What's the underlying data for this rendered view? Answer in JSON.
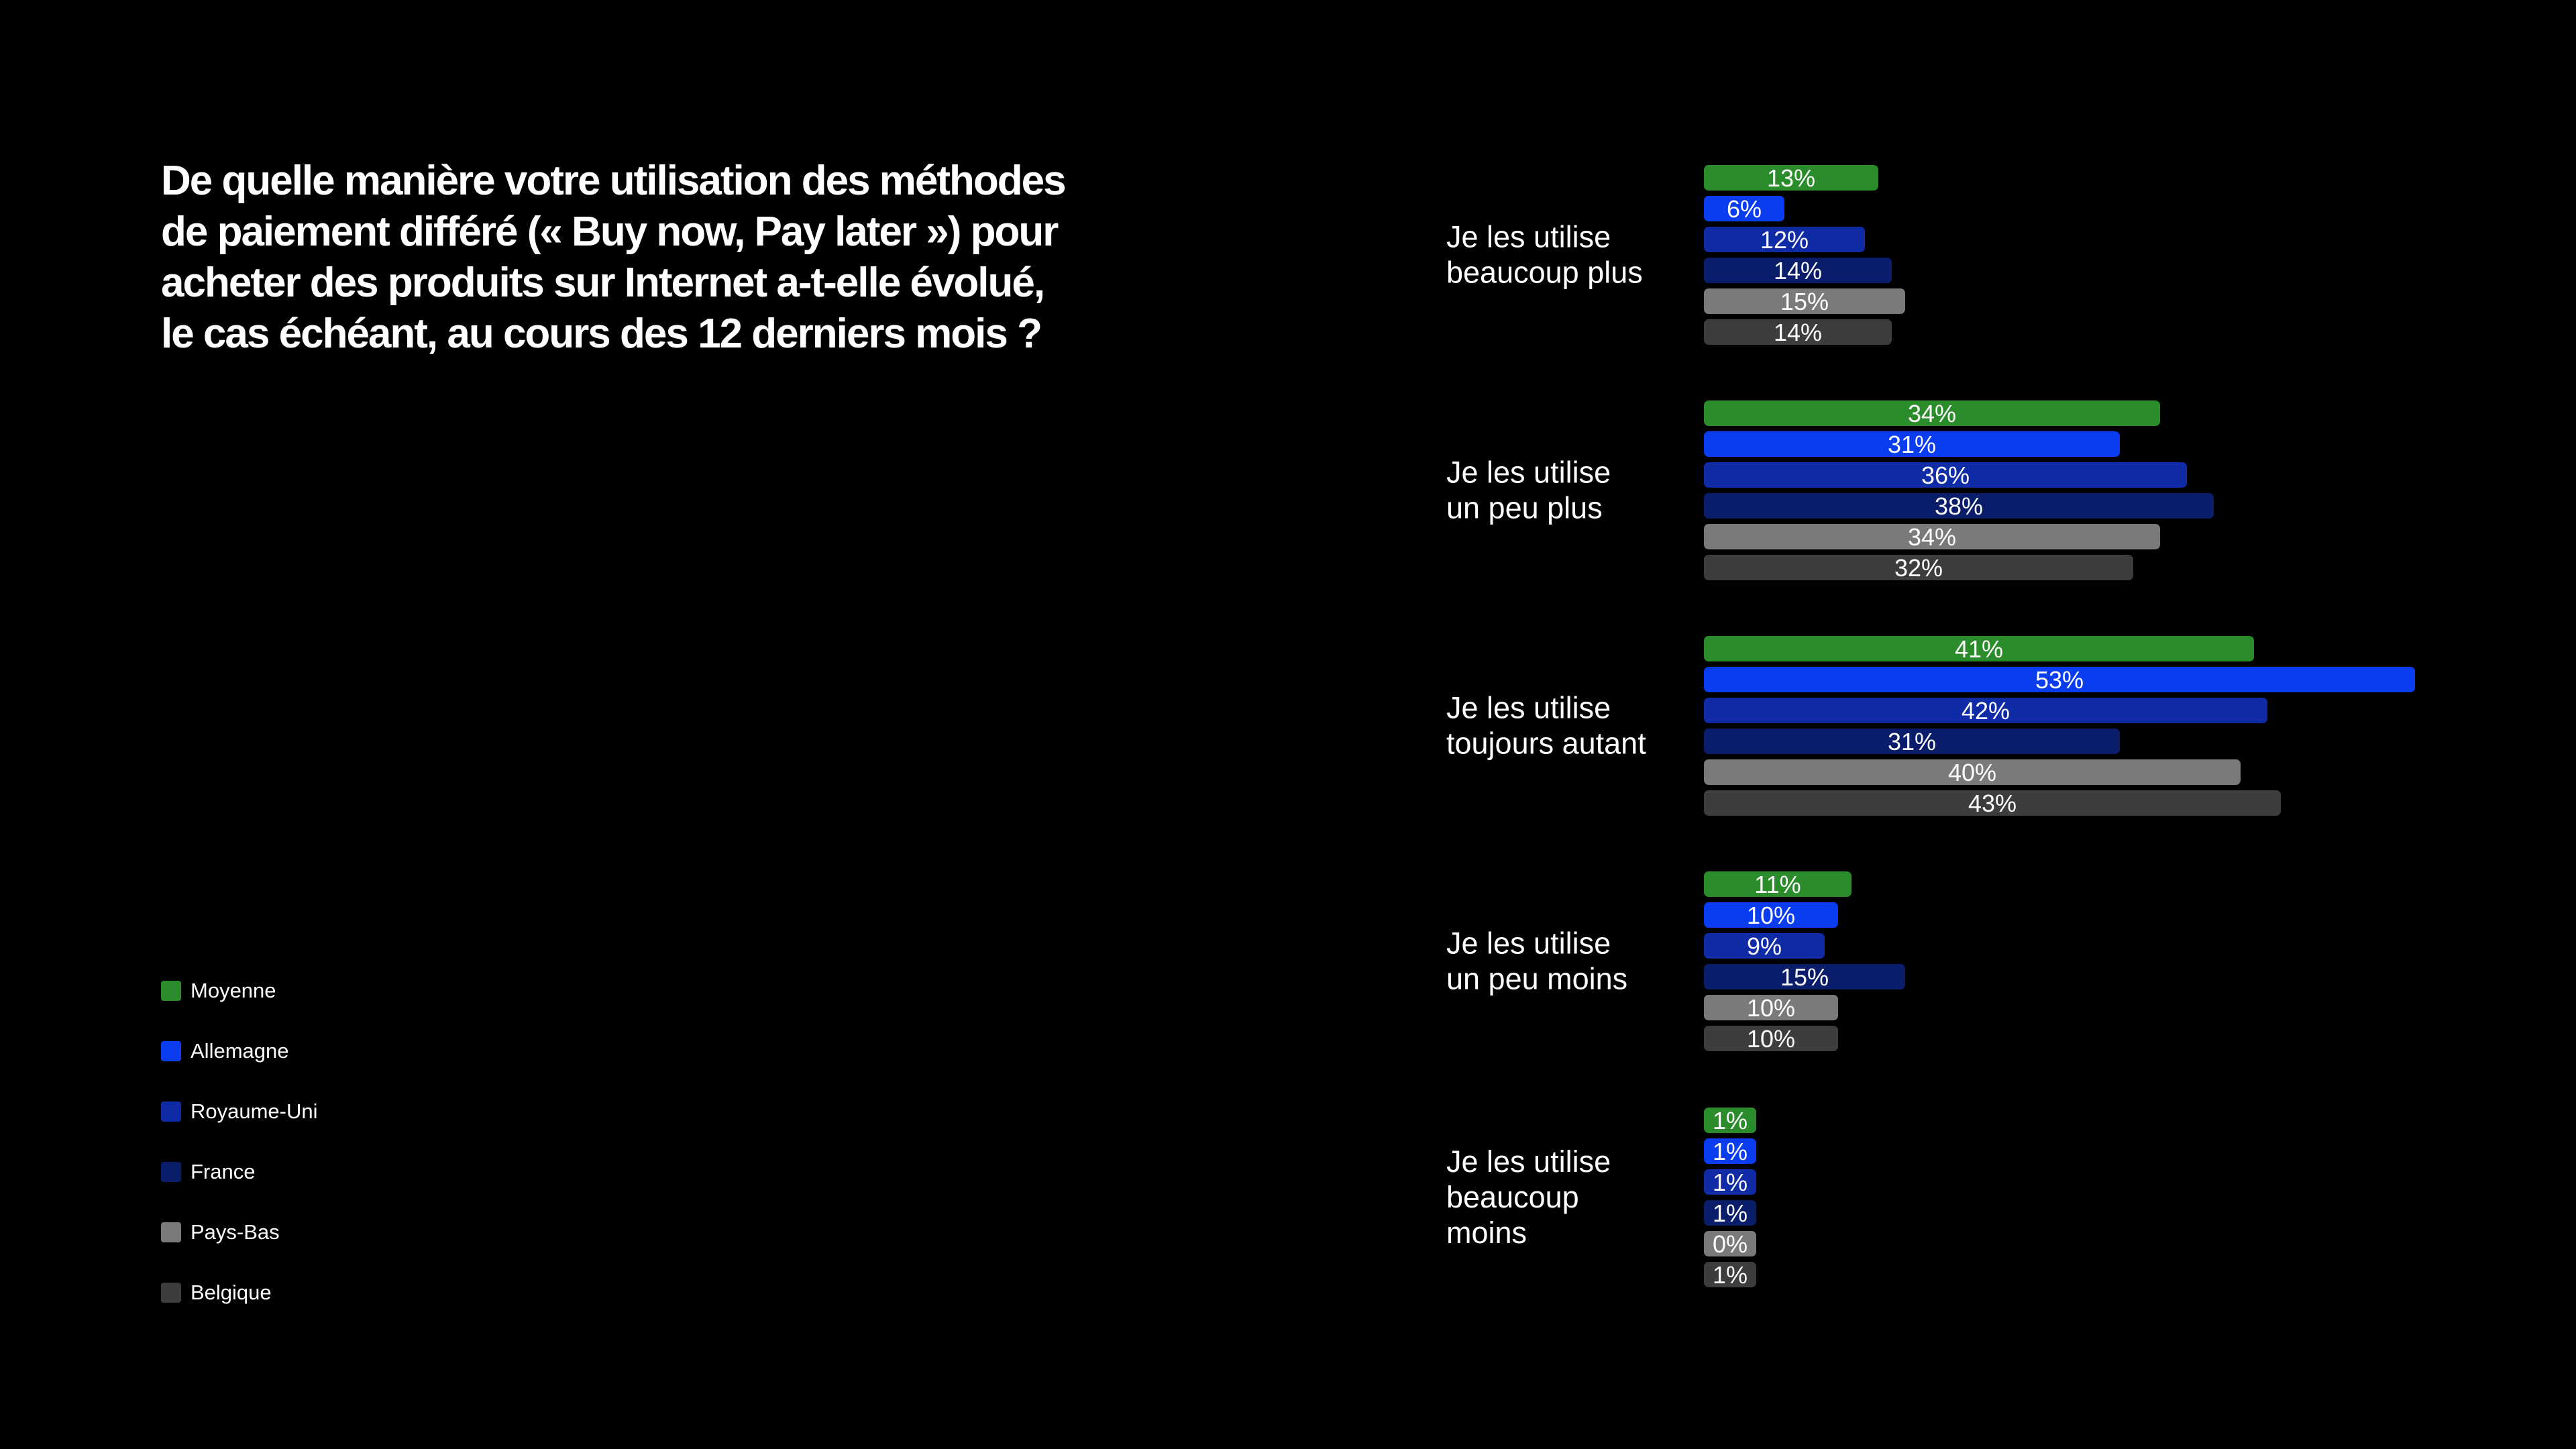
{
  "title": "De quelle manière votre utilisation des méthodes\nde paiement différé (« Buy now, Pay later ») pour\nacheter des produits sur Internet a-t-elle évolué,\nle cas échéant, au cours des 12 derniers mois ?",
  "legend": [
    {
      "label": "Moyenne",
      "color": "#2a8c2a"
    },
    {
      "label": "Allemagne",
      "color": "#0a3cf0"
    },
    {
      "label": "Royaume-Uni",
      "color": "#0f2ca6"
    },
    {
      "label": "France",
      "color": "#0a1d6b"
    },
    {
      "label": "Pays-Bas",
      "color": "#7a7a7a"
    },
    {
      "label": "Belgique",
      "color": "#3d3d3d"
    }
  ],
  "chart_data": {
    "type": "bar",
    "orientation": "horizontal",
    "title": "De quelle manière votre utilisation des méthodes de paiement différé (« Buy now, Pay later ») pour acheter des produits sur Internet a-t-elle évolué, le cas échéant, au cours des 12 derniers mois ?",
    "categories": [
      [
        "Je les utilise",
        "beaucoup plus"
      ],
      [
        "Je les utilise",
        "un peu plus"
      ],
      [
        "Je les utilise",
        "toujours autant"
      ],
      [
        "Je les utilise",
        "un peu moins"
      ],
      [
        "Je les utilise",
        "beaucoup",
        "moins"
      ]
    ],
    "series": [
      {
        "name": "Moyenne",
        "color": "#2a8c2a",
        "values": [
          13,
          34,
          41,
          11,
          1
        ],
        "labels": [
          "13%",
          "34%",
          "41%",
          "11%",
          "1%"
        ]
      },
      {
        "name": "Allemagne",
        "color": "#0a3cf0",
        "values": [
          6,
          31,
          53,
          10,
          1
        ],
        "labels": [
          "6%",
          "31%",
          "53%",
          "10%",
          "1%"
        ]
      },
      {
        "name": "Royaume-Uni",
        "color": "#0f2ca6",
        "values": [
          12,
          36,
          42,
          9,
          1
        ],
        "labels": [
          "12%",
          "36%",
          "42%",
          "9%",
          "1%"
        ]
      },
      {
        "name": "France",
        "color": "#0a1d6b",
        "values": [
          14,
          38,
          31,
          15,
          1
        ],
        "labels": [
          "14%",
          "38%",
          "31%",
          "15%",
          "1%"
        ]
      },
      {
        "name": "Pays-Bas",
        "color": "#7a7a7a",
        "values": [
          15,
          34,
          40,
          10,
          0
        ],
        "labels": [
          "15%",
          "34%",
          "40%",
          "10%",
          "0%"
        ]
      },
      {
        "name": "Belgique",
        "color": "#3d3d3d",
        "values": [
          14,
          32,
          43,
          10,
          1
        ],
        "labels": [
          "14%",
          "32%",
          "43%",
          "10%",
          "1%"
        ]
      }
    ],
    "xlim": [
      0,
      53
    ],
    "grid": false,
    "legend_position": "bottom-left"
  }
}
